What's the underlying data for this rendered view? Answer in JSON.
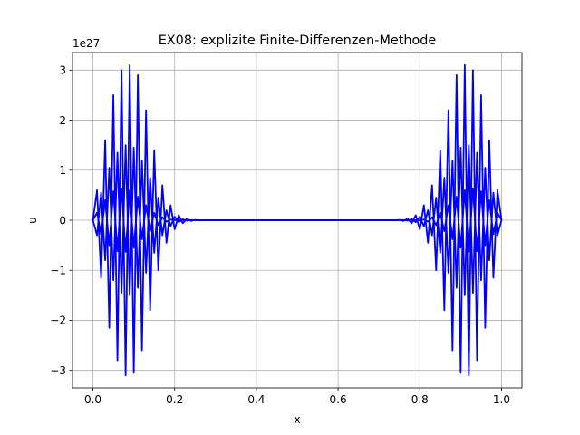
{
  "chart_data": {
    "type": "line",
    "title": "EX08: explizite Finite-Differenzen-Methode",
    "xlabel": "x",
    "ylabel": "u",
    "y_offset_label": "1e27",
    "y_scale": 1e+27,
    "xlim": [
      -0.05,
      1.05
    ],
    "ylim": [
      -3.35,
      3.35
    ],
    "x_ticks": [
      0.0,
      0.2,
      0.4,
      0.6,
      0.8,
      1.0
    ],
    "x_tick_labels": [
      "0.0",
      "0.2",
      "0.4",
      "0.6",
      "0.8",
      "1.0"
    ],
    "y_ticks": [
      -3,
      -2,
      -1,
      0,
      1,
      2,
      3
    ],
    "y_tick_labels": [
      "−3",
      "−2",
      "−1",
      "0",
      "1",
      "2",
      "3"
    ],
    "grid": true,
    "line_color": "#0000ff",
    "series": [
      {
        "x": [
          0.0,
          0.01,
          0.02,
          0.03,
          0.04,
          0.05,
          0.06,
          0.07,
          0.08,
          0.09,
          0.1,
          0.11,
          0.12,
          0.13,
          0.14,
          0.15,
          0.16,
          0.17,
          0.18,
          0.19,
          0.2,
          0.21,
          0.22,
          0.23,
          0.24,
          0.25,
          0.26,
          0.27,
          0.28,
          0.29,
          0.3,
          0.35,
          0.4,
          0.45,
          0.5,
          0.55,
          0.6,
          0.65,
          0.7,
          0.71,
          0.72,
          0.73,
          0.74,
          0.75,
          0.76,
          0.77,
          0.78,
          0.79,
          0.8,
          0.81,
          0.82,
          0.83,
          0.84,
          0.85,
          0.86,
          0.87,
          0.88,
          0.89,
          0.9,
          0.91,
          0.92,
          0.93,
          0.94,
          0.95,
          0.96,
          0.97,
          0.98,
          0.99,
          1.0
        ],
        "y": [
          0.0,
          0.6,
          -1.15,
          1.6,
          -2.15,
          2.5,
          -2.8,
          3.0,
          -3.1,
          3.1,
          -3.05,
          2.9,
          -2.6,
          2.2,
          -1.8,
          1.4,
          -1.0,
          0.7,
          -0.45,
          0.3,
          -0.18,
          0.1,
          -0.06,
          0.03,
          -0.015,
          0.008,
          -0.004,
          0.002,
          -0.001,
          0.0005,
          0.0,
          0.0,
          0.0,
          0.0,
          0.0,
          0.0,
          0.0,
          0.0,
          0.0,
          0.0005,
          -0.001,
          0.002,
          -0.004,
          0.008,
          -0.015,
          0.03,
          -0.06,
          0.1,
          -0.18,
          0.3,
          -0.45,
          0.7,
          -1.0,
          1.4,
          -1.8,
          2.2,
          -2.6,
          2.9,
          -3.05,
          3.1,
          -3.1,
          3.0,
          -2.8,
          2.5,
          -2.15,
          1.6,
          -1.15,
          0.6,
          0.0
        ]
      },
      {
        "x": [
          0.0,
          0.01,
          0.02,
          0.03,
          0.04,
          0.05,
          0.06,
          0.07,
          0.08,
          0.09,
          0.1,
          0.11,
          0.12,
          0.13,
          0.14,
          0.15,
          0.16,
          0.17,
          0.18,
          0.19,
          0.2,
          0.21,
          0.22,
          0.23,
          0.24,
          0.25,
          0.3,
          0.5,
          0.7,
          0.75,
          0.76,
          0.77,
          0.78,
          0.79,
          0.8,
          0.81,
          0.82,
          0.83,
          0.84,
          0.85,
          0.86,
          0.87,
          0.88,
          0.89,
          0.9,
          0.91,
          0.92,
          0.93,
          0.94,
          0.95,
          0.96,
          0.97,
          0.98,
          0.99,
          1.0
        ],
        "y": [
          0.0,
          -0.3,
          0.55,
          -0.8,
          1.05,
          -1.2,
          1.35,
          -1.45,
          1.5,
          -1.5,
          1.45,
          -1.35,
          1.2,
          -1.05,
          0.85,
          -0.65,
          0.45,
          -0.3,
          0.2,
          -0.12,
          0.07,
          -0.04,
          0.02,
          -0.01,
          0.005,
          0.0,
          0.0,
          0.0,
          0.0,
          0.0,
          0.005,
          -0.01,
          0.02,
          -0.04,
          0.07,
          -0.12,
          0.2,
          -0.3,
          0.45,
          -0.65,
          0.85,
          -1.05,
          1.2,
          -1.35,
          1.45,
          -1.5,
          1.5,
          -1.45,
          1.35,
          -1.2,
          1.05,
          -0.8,
          0.55,
          -0.3,
          0.0
        ]
      },
      {
        "x": [
          0.0,
          0.01,
          0.02,
          0.03,
          0.04,
          0.05,
          0.06,
          0.07,
          0.08,
          0.09,
          0.1,
          0.11,
          0.12,
          0.13,
          0.14,
          0.15,
          0.16,
          0.17,
          0.18,
          0.19,
          0.2,
          0.22,
          0.25,
          0.5,
          0.75,
          0.78,
          0.8,
          0.81,
          0.82,
          0.83,
          0.84,
          0.85,
          0.86,
          0.87,
          0.88,
          0.89,
          0.9,
          0.91,
          0.92,
          0.93,
          0.94,
          0.95,
          0.96,
          0.97,
          0.98,
          0.99,
          1.0
        ],
        "y": [
          0.0,
          0.15,
          -0.28,
          0.4,
          -0.5,
          0.58,
          -0.62,
          0.64,
          -0.63,
          0.6,
          -0.55,
          0.47,
          -0.38,
          0.3,
          -0.22,
          0.15,
          -0.1,
          0.06,
          -0.03,
          0.015,
          0.0,
          0.0,
          0.0,
          0.0,
          0.0,
          0.0,
          0.0,
          0.015,
          -0.03,
          0.06,
          -0.1,
          0.15,
          -0.22,
          0.3,
          -0.38,
          0.47,
          -0.55,
          0.6,
          -0.63,
          0.64,
          -0.62,
          0.58,
          -0.5,
          0.4,
          -0.28,
          0.15,
          0.0
        ]
      }
    ]
  }
}
